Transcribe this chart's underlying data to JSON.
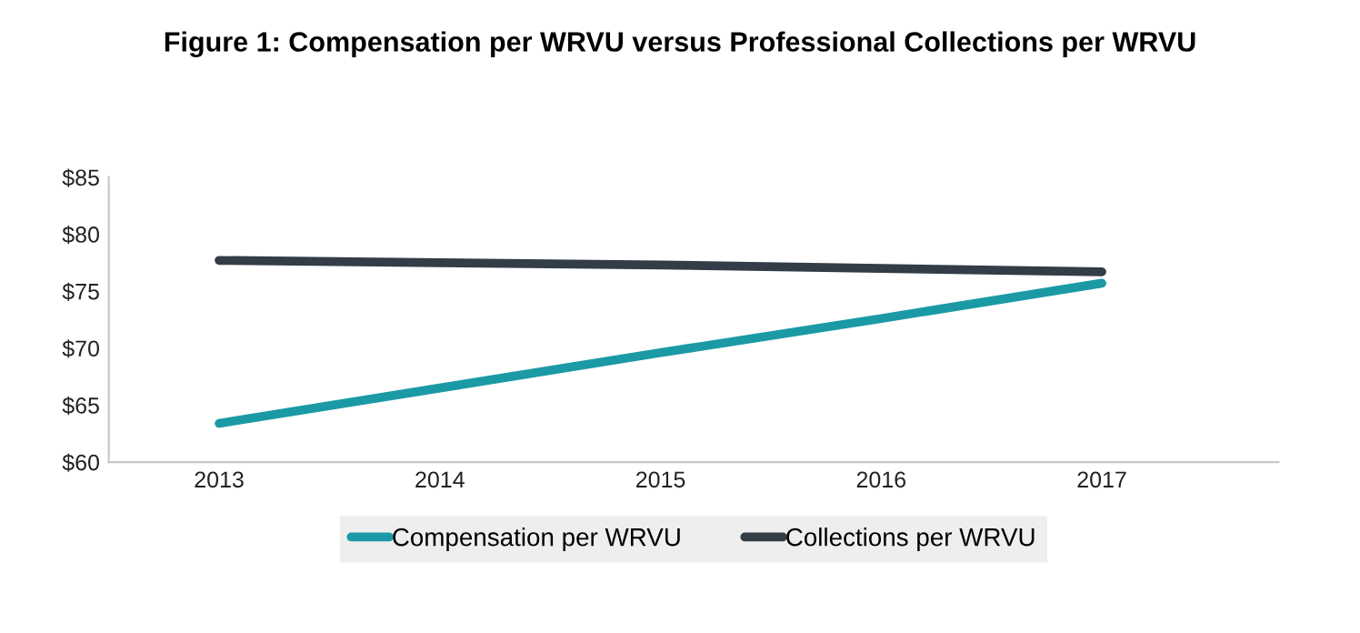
{
  "chart_data": {
    "type": "line",
    "title": "Figure 1: Compensation per WRVU versus Professional Collections per WRVU",
    "categories": [
      "2013",
      "2014",
      "2015",
      "2016",
      "2017"
    ],
    "series": [
      {
        "name": "Compensation per WRVU",
        "color": "#1b9aa6",
        "values": [
          63.4,
          66.5,
          69.6,
          72.6,
          75.7
        ]
      },
      {
        "name": "Collections per WRVU",
        "color": "#333d47",
        "values": [
          77.7,
          77.5,
          77.3,
          77.0,
          76.7
        ]
      }
    ],
    "ylim": [
      60,
      85
    ],
    "yticks": [
      {
        "value": 60,
        "label": "$60"
      },
      {
        "value": 65,
        "label": "$65"
      },
      {
        "value": 70,
        "label": "$70"
      },
      {
        "value": 75,
        "label": "$75"
      },
      {
        "value": 80,
        "label": "$80"
      },
      {
        "value": 85,
        "label": "$85"
      }
    ],
    "grid": false,
    "legend": "bottom",
    "marker": "none",
    "line_style": "solid"
  }
}
